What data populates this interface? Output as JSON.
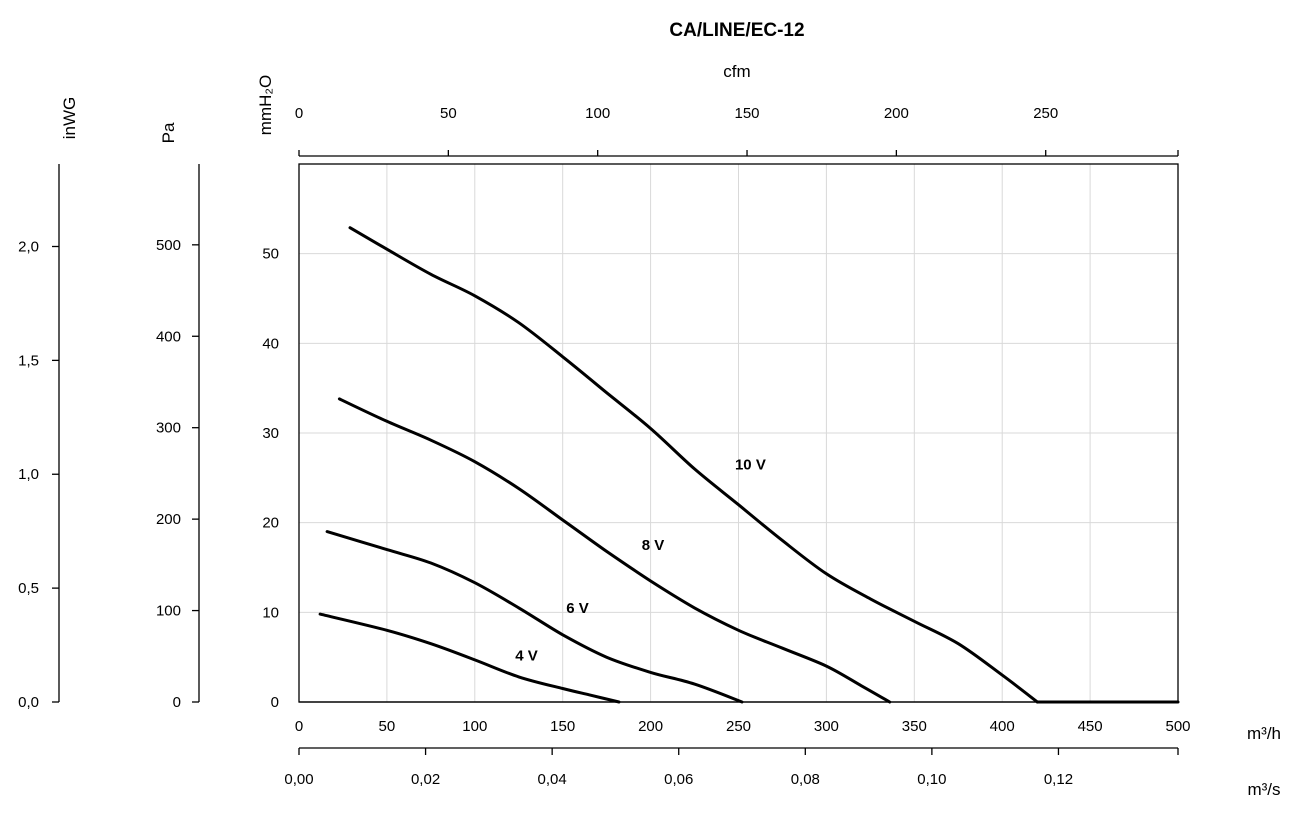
{
  "chart_data": {
    "type": "line",
    "title": "CA/LINE/EC-12",
    "x": {
      "label": "m³/h",
      "range": [
        0,
        500
      ],
      "ticks": [
        "0",
        "50",
        "100",
        "150",
        "200",
        "250",
        "300",
        "350",
        "400",
        "450",
        "500"
      ]
    },
    "x_top": {
      "label": "cfm",
      "ticks": [
        {
          "value": 0,
          "label": "0"
        },
        {
          "value": 50,
          "label": "50"
        },
        {
          "value": 100,
          "label": "100"
        },
        {
          "value": 150,
          "label": "150"
        },
        {
          "value": 200,
          "label": "200"
        },
        {
          "value": 250,
          "label": "250"
        }
      ]
    },
    "x_bottom2": {
      "label": "m³/s",
      "ticks": [
        {
          "value": 0.0,
          "label": "0,00"
        },
        {
          "value": 0.02,
          "label": "0,02"
        },
        {
          "value": 0.04,
          "label": "0,04"
        },
        {
          "value": 0.06,
          "label": "0,06"
        },
        {
          "value": 0.08,
          "label": "0,08"
        },
        {
          "value": 0.1,
          "label": "0,10"
        },
        {
          "value": 0.12,
          "label": "0,12"
        }
      ]
    },
    "y": {
      "label": "mmH₂O",
      "range": [
        0,
        60
      ],
      "ticks": [
        "0",
        "10",
        "20",
        "30",
        "40",
        "50"
      ]
    },
    "y_pa": {
      "label": "Pa",
      "ticks": [
        {
          "value": 0,
          "label": "0"
        },
        {
          "value": 100,
          "label": "100"
        },
        {
          "value": 200,
          "label": "200"
        },
        {
          "value": 300,
          "label": "300"
        },
        {
          "value": 400,
          "label": "400"
        },
        {
          "value": 500,
          "label": "500"
        }
      ]
    },
    "y_inwg": {
      "label": "inWG",
      "ticks": [
        {
          "value": 0.0,
          "label": "0,0"
        },
        {
          "value": 0.5,
          "label": "0,5"
        },
        {
          "value": 1.0,
          "label": "1,0"
        },
        {
          "value": 1.5,
          "label": "1,5"
        },
        {
          "value": 2.0,
          "label": "2,0"
        }
      ]
    },
    "grid": true,
    "series": [
      {
        "name": "10 V",
        "label_at": [
          248,
          26.5
        ],
        "points": [
          [
            29,
            52.9
          ],
          [
            50,
            50.5
          ],
          [
            75,
            47.7
          ],
          [
            100,
            45.3
          ],
          [
            125,
            42.3
          ],
          [
            150,
            38.5
          ],
          [
            175,
            34.5
          ],
          [
            200,
            30.5
          ],
          [
            225,
            26.0
          ],
          [
            250,
            22.0
          ],
          [
            275,
            18.0
          ],
          [
            300,
            14.3
          ],
          [
            325,
            11.5
          ],
          [
            350,
            9.0
          ],
          [
            375,
            6.5
          ],
          [
            400,
            3.0
          ],
          [
            420,
            0
          ]
        ]
      },
      {
        "name": "8 V",
        "label_at": [
          195,
          17.5
        ],
        "points": [
          [
            23,
            33.8
          ],
          [
            50,
            31.3
          ],
          [
            75,
            29.2
          ],
          [
            100,
            26.8
          ],
          [
            125,
            23.8
          ],
          [
            150,
            20.3
          ],
          [
            175,
            16.8
          ],
          [
            200,
            13.5
          ],
          [
            225,
            10.5
          ],
          [
            250,
            8.0
          ],
          [
            275,
            6.0
          ],
          [
            300,
            4.0
          ],
          [
            320,
            1.8
          ],
          [
            336,
            0
          ]
        ]
      },
      {
        "name": "6 V",
        "label_at": [
          152,
          10.5
        ],
        "points": [
          [
            16,
            19.0
          ],
          [
            50,
            17.0
          ],
          [
            75,
            15.5
          ],
          [
            100,
            13.3
          ],
          [
            125,
            10.5
          ],
          [
            150,
            7.5
          ],
          [
            175,
            5.0
          ],
          [
            200,
            3.3
          ],
          [
            225,
            2.0
          ],
          [
            252,
            0
          ]
        ]
      },
      {
        "name": "4 V",
        "label_at": [
          123,
          5.2
        ],
        "points": [
          [
            12,
            9.8
          ],
          [
            50,
            8.0
          ],
          [
            75,
            6.5
          ],
          [
            100,
            4.7
          ],
          [
            125,
            2.8
          ],
          [
            150,
            1.5
          ],
          [
            165,
            0.8
          ],
          [
            182,
            0
          ]
        ]
      }
    ]
  }
}
